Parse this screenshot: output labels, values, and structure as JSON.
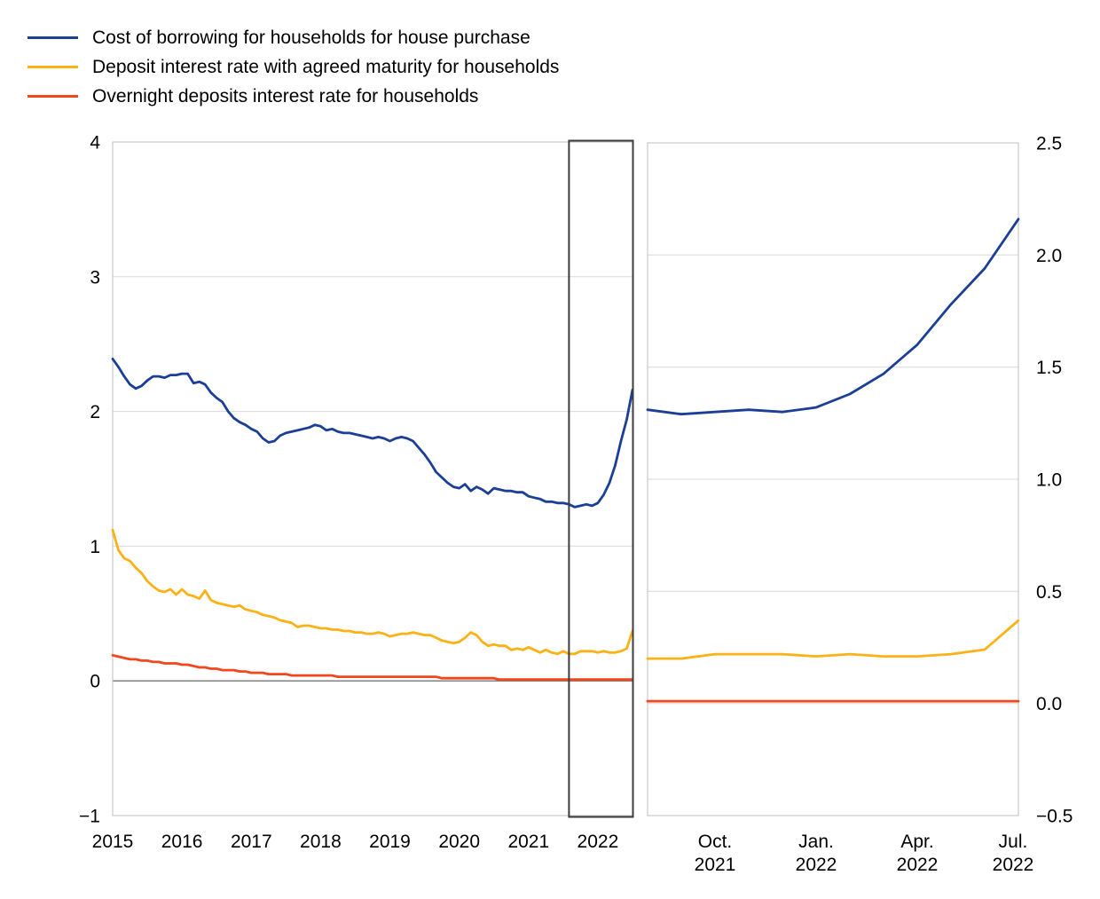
{
  "legend": {
    "items": [
      {
        "label": "Cost of borrowing for households for house purchase",
        "color": "#1b3f97"
      },
      {
        "label": "Deposit interest rate with agreed maturity for households",
        "color": "#fcb116"
      },
      {
        "label": "Overnight deposits interest rate for households",
        "color": "#f2461c"
      }
    ]
  },
  "colors": {
    "series_blue": "#1b3f97",
    "series_yellow": "#fcb116",
    "series_red": "#f2461c",
    "gridline": "#d9d9d9",
    "zero_line": "#808080",
    "panel_border": "#bfbfbf",
    "highlight_box": "#3d3d3d",
    "text": "#000000",
    "background": "#ffffff"
  },
  "chart_data": [
    {
      "type": "line",
      "panel": "left",
      "x_unit": "month",
      "x_start": "2015-01",
      "x_end": "2022-07",
      "x_tick_labels": [
        "2015",
        "2016",
        "2017",
        "2018",
        "2019",
        "2020",
        "2021",
        "2022"
      ],
      "x_tick_month_indices": [
        0,
        12,
        24,
        36,
        48,
        60,
        72,
        84
      ],
      "ylim": [
        -1,
        4
      ],
      "y_tick_values": [
        4,
        3,
        2,
        1,
        0,
        -1
      ],
      "y_tick_labels": [
        "4",
        "3",
        "2",
        "1",
        "0",
        "−1"
      ],
      "gridline_values": [
        3,
        2,
        1
      ],
      "zero_line_value": 0,
      "y_axis_side": "left",
      "grid": true,
      "highlight_box": {
        "x_start_month_index": 79,
        "x_end_month_index": 90
      },
      "series": [
        {
          "name": "Cost of borrowing for households for house purchase",
          "color": "#1b3f97",
          "values": [
            2.39,
            2.33,
            2.26,
            2.2,
            2.17,
            2.19,
            2.23,
            2.26,
            2.26,
            2.25,
            2.27,
            2.27,
            2.28,
            2.28,
            2.21,
            2.22,
            2.2,
            2.14,
            2.1,
            2.07,
            2.0,
            1.95,
            1.92,
            1.9,
            1.87,
            1.85,
            1.8,
            1.77,
            1.78,
            1.82,
            1.84,
            1.85,
            1.86,
            1.87,
            1.88,
            1.9,
            1.89,
            1.86,
            1.87,
            1.85,
            1.84,
            1.84,
            1.83,
            1.82,
            1.81,
            1.8,
            1.81,
            1.8,
            1.78,
            1.8,
            1.81,
            1.8,
            1.78,
            1.73,
            1.68,
            1.62,
            1.55,
            1.51,
            1.47,
            1.44,
            1.43,
            1.46,
            1.41,
            1.44,
            1.42,
            1.39,
            1.43,
            1.42,
            1.41,
            1.41,
            1.4,
            1.4,
            1.37,
            1.36,
            1.35,
            1.33,
            1.33,
            1.32,
            1.32,
            1.31,
            1.29,
            1.3,
            1.31,
            1.3,
            1.32,
            1.38,
            1.47,
            1.6,
            1.78,
            1.94,
            2.16
          ]
        },
        {
          "name": "Deposit interest rate with agreed maturity for households",
          "color": "#fcb116",
          "values": [
            1.12,
            0.97,
            0.91,
            0.89,
            0.84,
            0.8,
            0.74,
            0.7,
            0.67,
            0.66,
            0.68,
            0.64,
            0.68,
            0.64,
            0.63,
            0.61,
            0.67,
            0.6,
            0.58,
            0.57,
            0.56,
            0.55,
            0.56,
            0.53,
            0.52,
            0.51,
            0.49,
            0.48,
            0.47,
            0.45,
            0.44,
            0.43,
            0.4,
            0.41,
            0.41,
            0.4,
            0.39,
            0.39,
            0.38,
            0.38,
            0.37,
            0.37,
            0.36,
            0.36,
            0.35,
            0.35,
            0.36,
            0.35,
            0.33,
            0.34,
            0.35,
            0.35,
            0.36,
            0.35,
            0.34,
            0.34,
            0.32,
            0.3,
            0.29,
            0.28,
            0.29,
            0.32,
            0.36,
            0.34,
            0.29,
            0.26,
            0.27,
            0.26,
            0.26,
            0.23,
            0.24,
            0.23,
            0.25,
            0.23,
            0.21,
            0.23,
            0.21,
            0.2,
            0.22,
            0.2,
            0.2,
            0.22,
            0.22,
            0.22,
            0.21,
            0.22,
            0.21,
            0.21,
            0.22,
            0.24,
            0.37
          ]
        },
        {
          "name": "Overnight deposits interest rate for households",
          "color": "#f2461c",
          "values": [
            0.19,
            0.18,
            0.17,
            0.16,
            0.16,
            0.15,
            0.15,
            0.14,
            0.14,
            0.13,
            0.13,
            0.13,
            0.12,
            0.12,
            0.11,
            0.1,
            0.1,
            0.09,
            0.09,
            0.08,
            0.08,
            0.08,
            0.07,
            0.07,
            0.06,
            0.06,
            0.06,
            0.05,
            0.05,
            0.05,
            0.05,
            0.04,
            0.04,
            0.04,
            0.04,
            0.04,
            0.04,
            0.04,
            0.04,
            0.03,
            0.03,
            0.03,
            0.03,
            0.03,
            0.03,
            0.03,
            0.03,
            0.03,
            0.03,
            0.03,
            0.03,
            0.03,
            0.03,
            0.03,
            0.03,
            0.03,
            0.03,
            0.02,
            0.02,
            0.02,
            0.02,
            0.02,
            0.02,
            0.02,
            0.02,
            0.02,
            0.02,
            0.01,
            0.01,
            0.01,
            0.01,
            0.01,
            0.01,
            0.01,
            0.01,
            0.01,
            0.01,
            0.01,
            0.01,
            0.01,
            0.01,
            0.01,
            0.01,
            0.01,
            0.01,
            0.01,
            0.01,
            0.01,
            0.01,
            0.01,
            0.01
          ]
        }
      ]
    },
    {
      "type": "line",
      "panel": "right",
      "x_unit": "month",
      "x_start": "2021-08",
      "x_end": "2022-07",
      "x_tick_labels": [
        [
          "Oct.",
          "2021"
        ],
        [
          "Jan.",
          "2022"
        ],
        [
          "Apr.",
          "2022"
        ],
        [
          "Jul.",
          "2022"
        ]
      ],
      "x_tick_month_indices": [
        2,
        5,
        8,
        11
      ],
      "ylim": [
        -0.5,
        2.5
      ],
      "y_tick_values": [
        2.5,
        2.0,
        1.5,
        1.0,
        0.5,
        0.0,
        -0.5
      ],
      "y_tick_labels": [
        "2.5",
        "2.0",
        "1.5",
        "1.0",
        "0.5",
        "0.0",
        "−0.5"
      ],
      "gridline_values": [
        2.0,
        1.5,
        1.0,
        0.5,
        0.0
      ],
      "y_axis_side": "right",
      "grid": true,
      "series": [
        {
          "name": "Cost of borrowing for households for house purchase",
          "color": "#1b3f97",
          "values": [
            1.31,
            1.29,
            1.3,
            1.31,
            1.3,
            1.32,
            1.38,
            1.47,
            1.6,
            1.78,
            1.94,
            2.16
          ]
        },
        {
          "name": "Deposit interest rate with agreed maturity for households",
          "color": "#fcb116",
          "values": [
            0.2,
            0.2,
            0.22,
            0.22,
            0.22,
            0.21,
            0.22,
            0.21,
            0.21,
            0.22,
            0.24,
            0.37
          ]
        },
        {
          "name": "Overnight deposits interest rate for households",
          "color": "#f2461c",
          "values": [
            0.01,
            0.01,
            0.01,
            0.01,
            0.01,
            0.01,
            0.01,
            0.01,
            0.01,
            0.01,
            0.01,
            0.01
          ]
        }
      ]
    }
  ]
}
